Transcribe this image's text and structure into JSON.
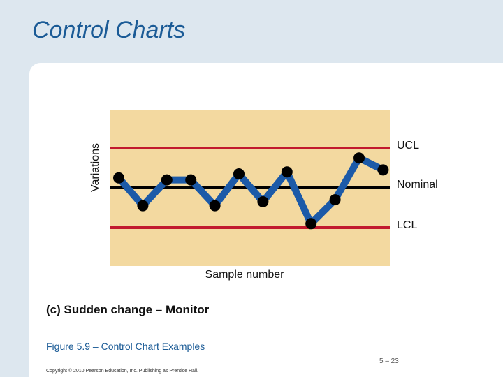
{
  "slide": {
    "title": "Control Charts",
    "caption": "(c) Sudden change – Monitor",
    "figure_caption": "Figure 5.9 –  Control Chart Examples",
    "page_number": "5 – 23",
    "copyright": "Copyright © 2010 Pearson Education, Inc. Publishing as Prentice Hall."
  },
  "chart_data": {
    "type": "line",
    "xlabel": "Sample number",
    "ylabel": "Variations",
    "ylim": [
      -5,
      5
    ],
    "x": [
      1,
      2,
      3,
      4,
      5,
      6,
      7,
      8,
      9,
      10,
      11,
      12
    ],
    "values": [
      0.25,
      -0.45,
      0.2,
      0.2,
      -0.45,
      0.35,
      -0.35,
      0.4,
      -0.9,
      -0.3,
      0.75,
      0.45
    ],
    "control_limits": {
      "UCL": {
        "label": "UCL",
        "value": 1.0
      },
      "Nominal": {
        "label": "Nominal",
        "value": 0
      },
      "LCL": {
        "label": "LCL",
        "value": -1.0
      }
    },
    "colors": {
      "plot_background": "#f3d9a0",
      "limit_line": "#c21a2e",
      "nominal_line": "#000000",
      "series_line": "#1c5aa8",
      "points": "#000000"
    }
  }
}
